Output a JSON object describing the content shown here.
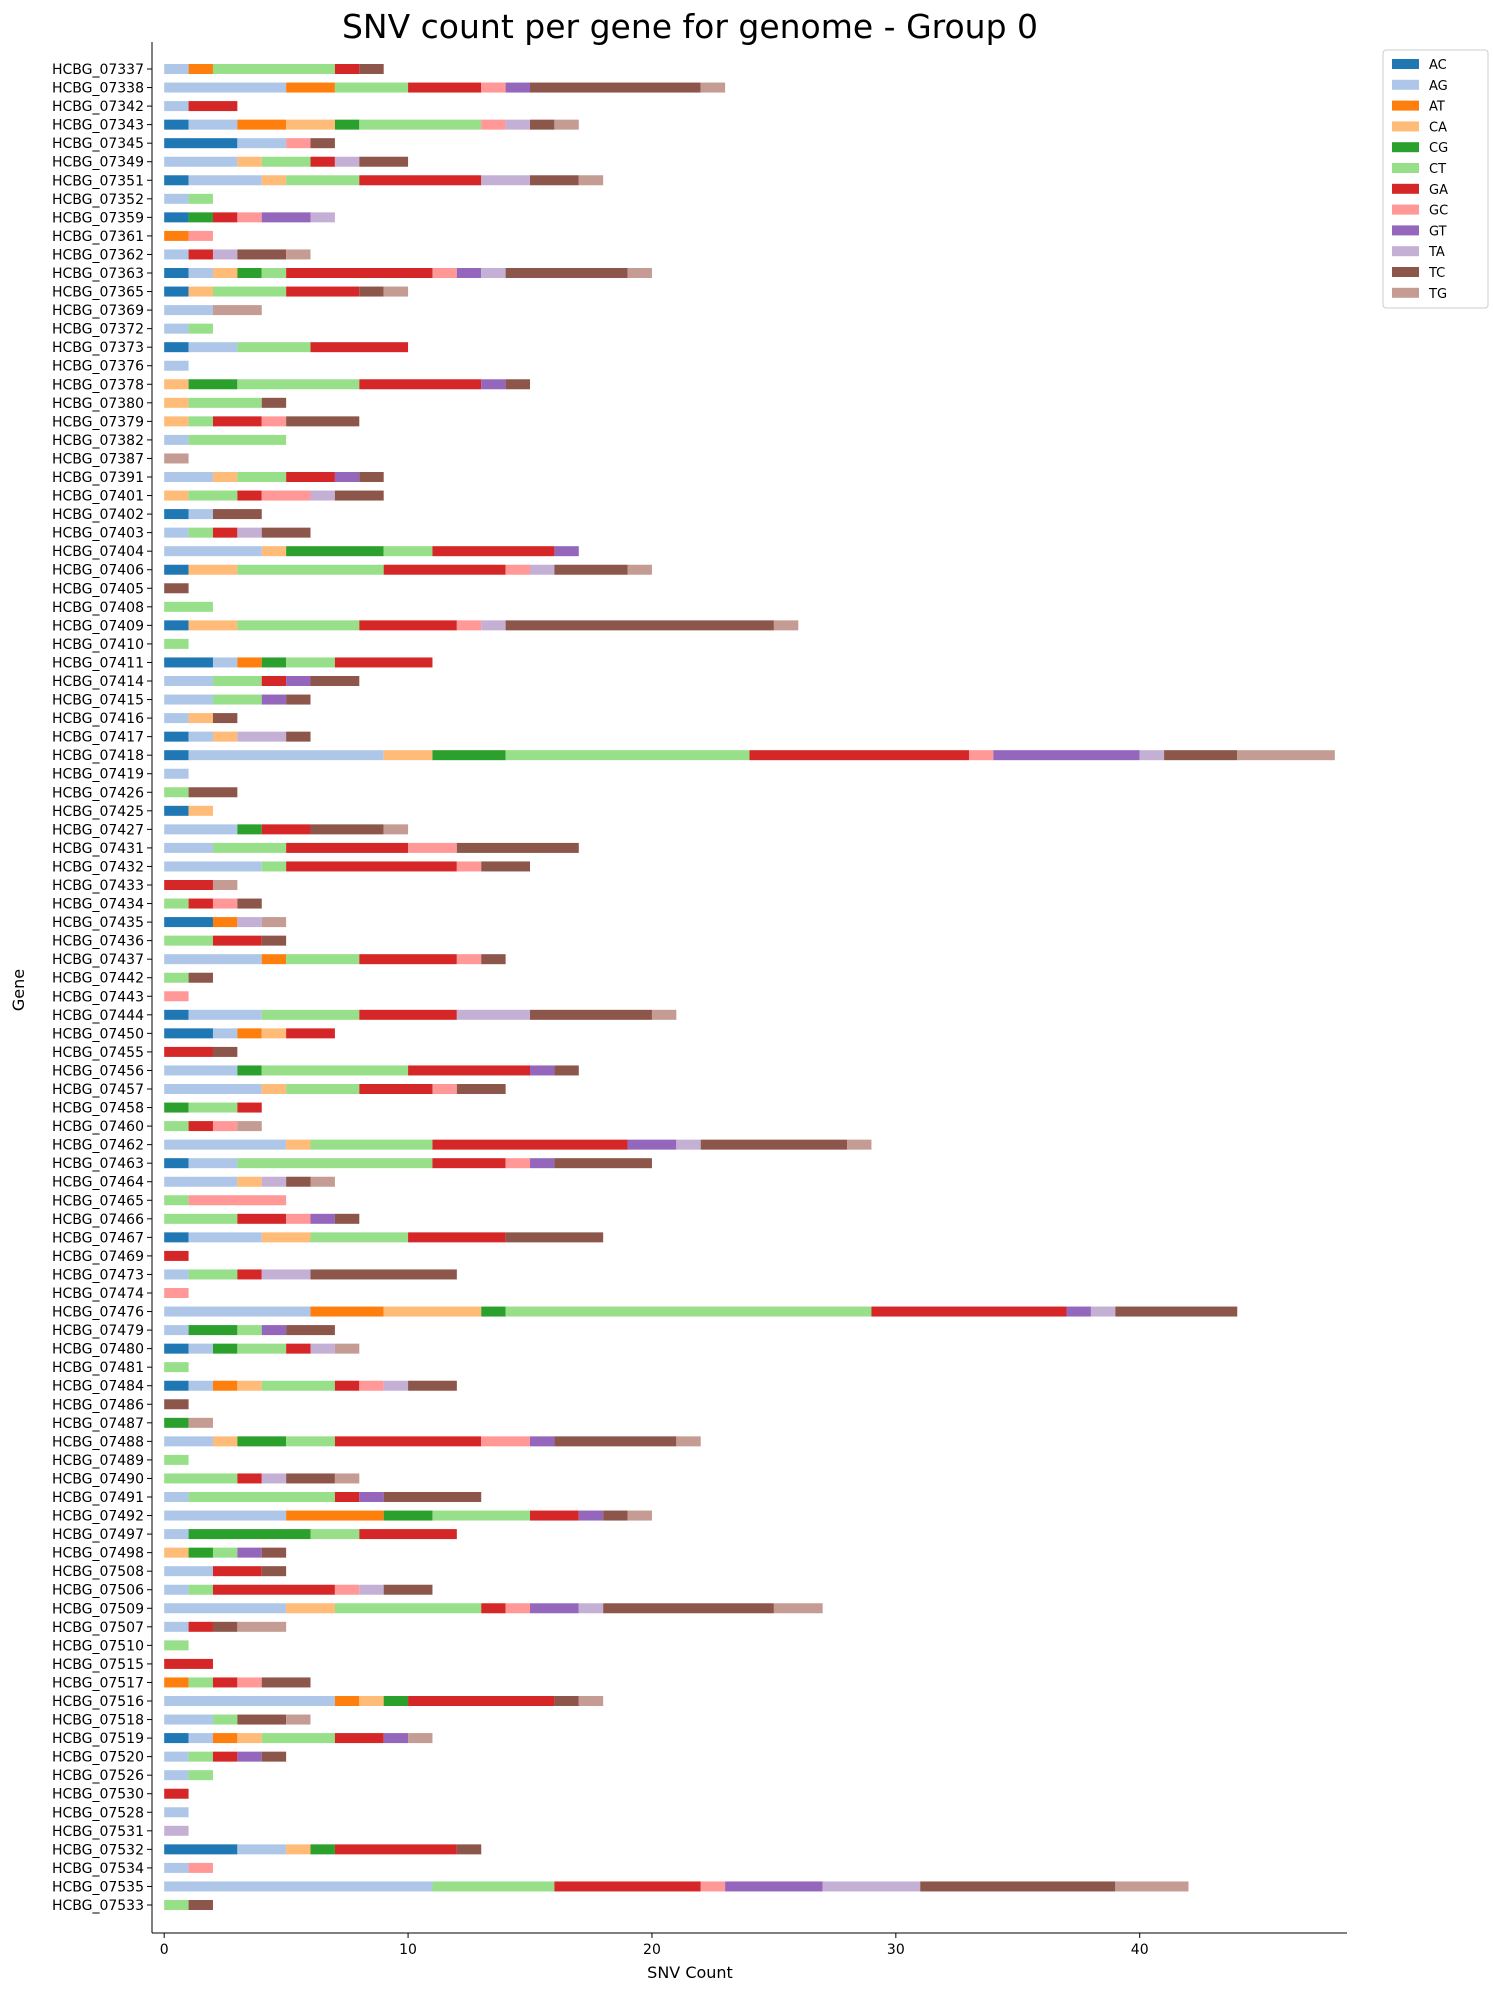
{
  "chart_data": {
    "type": "bar",
    "orientation": "horizontal",
    "stacked": true,
    "title": "SNV count per gene for genome - Group 0",
    "xlabel": "SNV Count",
    "ylabel": "Gene",
    "xlim": [
      -0.5,
      48.5
    ],
    "xticks": [
      0,
      10,
      20,
      30,
      40
    ],
    "grid": false,
    "legend": "top-right-outside",
    "legend_entries": [
      "AC",
      "AG",
      "AT",
      "CA",
      "CG",
      "CT",
      "GA",
      "GC",
      "GT",
      "TA",
      "TC",
      "TG"
    ],
    "colors": {
      "AC": "#1f77b4",
      "AG": "#aec7e8",
      "AT": "#ff7f0e",
      "CA": "#ffbb78",
      "CG": "#2ca02c",
      "CT": "#98df8a",
      "GA": "#d62728",
      "GC": "#ff9896",
      "GT": "#9467bd",
      "TA": "#c5b0d5",
      "TC": "#8c564b",
      "TG": "#c49c94"
    },
    "categories": [
      "HCBG_07337",
      "HCBG_07338",
      "HCBG_07342",
      "HCBG_07343",
      "HCBG_07345",
      "HCBG_07349",
      "HCBG_07351",
      "HCBG_07352",
      "HCBG_07359",
      "HCBG_07361",
      "HCBG_07362",
      "HCBG_07363",
      "HCBG_07365",
      "HCBG_07369",
      "HCBG_07372",
      "HCBG_07373",
      "HCBG_07376",
      "HCBG_07378",
      "HCBG_07380",
      "HCBG_07379",
      "HCBG_07382",
      "HCBG_07387",
      "HCBG_07391",
      "HCBG_07401",
      "HCBG_07402",
      "HCBG_07403",
      "HCBG_07404",
      "HCBG_07406",
      "HCBG_07405",
      "HCBG_07408",
      "HCBG_07409",
      "HCBG_07410",
      "HCBG_07411",
      "HCBG_07414",
      "HCBG_07415",
      "HCBG_07416",
      "HCBG_07417",
      "HCBG_07418",
      "HCBG_07419",
      "HCBG_07426",
      "HCBG_07425",
      "HCBG_07427",
      "HCBG_07431",
      "HCBG_07432",
      "HCBG_07433",
      "HCBG_07434",
      "HCBG_07435",
      "HCBG_07436",
      "HCBG_07437",
      "HCBG_07442",
      "HCBG_07443",
      "HCBG_07444",
      "HCBG_07450",
      "HCBG_07455",
      "HCBG_07456",
      "HCBG_07457",
      "HCBG_07458",
      "HCBG_07460",
      "HCBG_07462",
      "HCBG_07463",
      "HCBG_07464",
      "HCBG_07465",
      "HCBG_07466",
      "HCBG_07467",
      "HCBG_07469",
      "HCBG_07473",
      "HCBG_07474",
      "HCBG_07476",
      "HCBG_07479",
      "HCBG_07480",
      "HCBG_07481",
      "HCBG_07484",
      "HCBG_07486",
      "HCBG_07487",
      "HCBG_07488",
      "HCBG_07489",
      "HCBG_07490",
      "HCBG_07491",
      "HCBG_07492",
      "HCBG_07497",
      "HCBG_07498",
      "HCBG_07508",
      "HCBG_07506",
      "HCBG_07509",
      "HCBG_07507",
      "HCBG_07510",
      "HCBG_07515",
      "HCBG_07517",
      "HCBG_07516",
      "HCBG_07518",
      "HCBG_07519",
      "HCBG_07520",
      "HCBG_07526",
      "HCBG_07530",
      "HCBG_07528",
      "HCBG_07531",
      "HCBG_07532",
      "HCBG_07534",
      "HCBG_07535",
      "HCBG_07533"
    ],
    "series": [
      {
        "name": "AC",
        "values": [
          0,
          0,
          0,
          1,
          3,
          0,
          1,
          0,
          1,
          0,
          0,
          1,
          1,
          0,
          0,
          1,
          0,
          0,
          0,
          0,
          0,
          0,
          0,
          0,
          1,
          0,
          0,
          1,
          0,
          0,
          1,
          0,
          2,
          0,
          0,
          0,
          1,
          1,
          0,
          0,
          1,
          0,
          0,
          0,
          0,
          0,
          2,
          0,
          0,
          0,
          0,
          1,
          2,
          0,
          0,
          0,
          0,
          0,
          0,
          1,
          0,
          0,
          0,
          1,
          0,
          0,
          0,
          0,
          0,
          1,
          0,
          1,
          0,
          0,
          0,
          0,
          0,
          0,
          0,
          0,
          0,
          0,
          0,
          0,
          0,
          0,
          0,
          0,
          0,
          0,
          1,
          0,
          0,
          0,
          0,
          0,
          3,
          0,
          0,
          0
        ]
      },
      {
        "name": "AG",
        "values": [
          1,
          5,
          1,
          2,
          2,
          3,
          3,
          1,
          0,
          0,
          1,
          1,
          0,
          2,
          1,
          2,
          1,
          0,
          0,
          0,
          1,
          0,
          2,
          0,
          1,
          1,
          4,
          0,
          0,
          0,
          0,
          0,
          1,
          2,
          2,
          1,
          1,
          8,
          1,
          0,
          0,
          3,
          2,
          4,
          0,
          0,
          0,
          0,
          4,
          0,
          0,
          3,
          1,
          0,
          3,
          4,
          0,
          0,
          5,
          2,
          3,
          0,
          0,
          3,
          0,
          1,
          0,
          6,
          1,
          1,
          0,
          1,
          0,
          0,
          2,
          0,
          0,
          1,
          5,
          1,
          0,
          2,
          1,
          5,
          1,
          0,
          0,
          0,
          7,
          2,
          1,
          1,
          1,
          0,
          1,
          0,
          2,
          1,
          11,
          0
        ]
      },
      {
        "name": "AT",
        "values": [
          1,
          2,
          0,
          2,
          0,
          0,
          0,
          0,
          0,
          1,
          0,
          0,
          0,
          0,
          0,
          0,
          0,
          0,
          0,
          0,
          0,
          0,
          0,
          0,
          0,
          0,
          0,
          0,
          0,
          0,
          0,
          0,
          1,
          0,
          0,
          0,
          0,
          0,
          0,
          0,
          0,
          0,
          0,
          0,
          0,
          0,
          1,
          0,
          1,
          0,
          0,
          0,
          1,
          0,
          0,
          0,
          0,
          0,
          0,
          0,
          0,
          0,
          0,
          0,
          0,
          0,
          0,
          3,
          0,
          0,
          0,
          1,
          0,
          0,
          0,
          0,
          0,
          0,
          4,
          0,
          0,
          0,
          0,
          0,
          0,
          0,
          0,
          1,
          1,
          0,
          1,
          0,
          0,
          0,
          0,
          0,
          0,
          0,
          0,
          0
        ]
      },
      {
        "name": "CA",
        "values": [
          0,
          0,
          0,
          2,
          0,
          1,
          1,
          0,
          0,
          0,
          0,
          1,
          1,
          0,
          0,
          0,
          0,
          1,
          1,
          1,
          0,
          0,
          1,
          1,
          0,
          0,
          1,
          2,
          0,
          0,
          2,
          0,
          0,
          0,
          0,
          1,
          1,
          2,
          0,
          0,
          1,
          0,
          0,
          0,
          0,
          0,
          0,
          0,
          0,
          0,
          0,
          0,
          1,
          0,
          0,
          1,
          0,
          0,
          1,
          0,
          1,
          0,
          0,
          2,
          0,
          0,
          0,
          4,
          0,
          0,
          0,
          1,
          0,
          0,
          1,
          0,
          0,
          0,
          0,
          0,
          1,
          0,
          0,
          2,
          0,
          0,
          0,
          0,
          1,
          0,
          1,
          0,
          0,
          0,
          0,
          0,
          1,
          0,
          0,
          0
        ]
      },
      {
        "name": "CG",
        "values": [
          0,
          0,
          0,
          1,
          0,
          0,
          0,
          0,
          1,
          0,
          0,
          1,
          0,
          0,
          0,
          0,
          0,
          2,
          0,
          0,
          0,
          0,
          0,
          0,
          0,
          0,
          4,
          0,
          0,
          0,
          0,
          0,
          1,
          0,
          0,
          0,
          0,
          3,
          0,
          0,
          0,
          1,
          0,
          0,
          0,
          0,
          0,
          0,
          0,
          0,
          0,
          0,
          0,
          0,
          1,
          0,
          1,
          0,
          0,
          0,
          0,
          0,
          0,
          0,
          0,
          0,
          0,
          1,
          2,
          1,
          0,
          0,
          0,
          1,
          2,
          0,
          0,
          0,
          2,
          5,
          1,
          0,
          0,
          0,
          0,
          0,
          0,
          0,
          1,
          0,
          0,
          0,
          0,
          0,
          0,
          0,
          1,
          0,
          0,
          0
        ]
      },
      {
        "name": "CT",
        "values": [
          5,
          3,
          0,
          5,
          0,
          2,
          3,
          1,
          0,
          0,
          0,
          1,
          3,
          0,
          1,
          3,
          0,
          5,
          3,
          1,
          4,
          0,
          2,
          2,
          0,
          1,
          2,
          6,
          0,
          2,
          5,
          1,
          2,
          2,
          2,
          0,
          0,
          10,
          0,
          1,
          0,
          0,
          3,
          1,
          0,
          1,
          0,
          2,
          3,
          1,
          0,
          4,
          0,
          0,
          6,
          3,
          2,
          1,
          5,
          8,
          0,
          1,
          3,
          4,
          0,
          2,
          0,
          15,
          1,
          2,
          1,
          3,
          0,
          0,
          2,
          1,
          3,
          6,
          4,
          2,
          1,
          0,
          1,
          6,
          0,
          1,
          0,
          1,
          0,
          1,
          3,
          1,
          1,
          0,
          0,
          0,
          0,
          0,
          5,
          1
        ]
      },
      {
        "name": "GA",
        "values": [
          1,
          3,
          2,
          0,
          0,
          1,
          5,
          0,
          1,
          0,
          1,
          6,
          3,
          0,
          0,
          4,
          0,
          5,
          0,
          2,
          0,
          0,
          2,
          1,
          0,
          1,
          5,
          5,
          0,
          0,
          4,
          0,
          4,
          1,
          0,
          0,
          0,
          9,
          0,
          0,
          0,
          2,
          5,
          7,
          2,
          1,
          0,
          2,
          4,
          0,
          0,
          4,
          2,
          2,
          5,
          3,
          1,
          1,
          8,
          3,
          0,
          0,
          2,
          4,
          1,
          1,
          0,
          8,
          0,
          1,
          0,
          1,
          0,
          0,
          6,
          0,
          1,
          1,
          2,
          4,
          0,
          2,
          5,
          1,
          1,
          0,
          2,
          1,
          6,
          0,
          2,
          1,
          0,
          1,
          0,
          0,
          5,
          0,
          6,
          0
        ]
      },
      {
        "name": "GC",
        "values": [
          0,
          1,
          0,
          1,
          1,
          0,
          0,
          0,
          1,
          1,
          0,
          1,
          0,
          0,
          0,
          0,
          0,
          0,
          0,
          1,
          0,
          0,
          0,
          2,
          0,
          0,
          0,
          1,
          0,
          0,
          1,
          0,
          0,
          0,
          0,
          0,
          0,
          1,
          0,
          0,
          0,
          0,
          2,
          1,
          0,
          1,
          0,
          0,
          1,
          0,
          1,
          0,
          0,
          0,
          0,
          1,
          0,
          1,
          0,
          1,
          0,
          4,
          1,
          0,
          0,
          0,
          1,
          0,
          0,
          0,
          0,
          1,
          0,
          0,
          2,
          0,
          0,
          0,
          0,
          0,
          0,
          0,
          1,
          1,
          0,
          0,
          0,
          1,
          0,
          0,
          0,
          0,
          0,
          0,
          0,
          0,
          0,
          1,
          1,
          0
        ]
      },
      {
        "name": "GT",
        "values": [
          0,
          1,
          0,
          0,
          0,
          0,
          0,
          0,
          2,
          0,
          0,
          1,
          0,
          0,
          0,
          0,
          0,
          1,
          0,
          0,
          0,
          0,
          1,
          0,
          0,
          0,
          1,
          0,
          0,
          0,
          0,
          0,
          0,
          1,
          1,
          0,
          0,
          6,
          0,
          0,
          0,
          0,
          0,
          0,
          0,
          0,
          0,
          0,
          0,
          0,
          0,
          0,
          0,
          0,
          1,
          0,
          0,
          0,
          2,
          1,
          0,
          0,
          1,
          0,
          0,
          0,
          0,
          1,
          1,
          0,
          0,
          0,
          0,
          0,
          1,
          0,
          0,
          1,
          1,
          0,
          1,
          0,
          0,
          2,
          0,
          0,
          0,
          0,
          0,
          0,
          1,
          1,
          0,
          0,
          0,
          0,
          0,
          0,
          4,
          0
        ]
      },
      {
        "name": "TA",
        "values": [
          0,
          0,
          0,
          1,
          0,
          1,
          2,
          0,
          1,
          0,
          1,
          1,
          0,
          0,
          0,
          0,
          0,
          0,
          0,
          0,
          0,
          0,
          0,
          1,
          0,
          1,
          0,
          1,
          0,
          0,
          1,
          0,
          0,
          0,
          0,
          0,
          2,
          1,
          0,
          0,
          0,
          0,
          0,
          0,
          0,
          0,
          1,
          0,
          0,
          0,
          0,
          3,
          0,
          0,
          0,
          0,
          0,
          0,
          1,
          0,
          1,
          0,
          0,
          0,
          0,
          2,
          0,
          1,
          0,
          1,
          0,
          1,
          0,
          0,
          0,
          0,
          1,
          0,
          0,
          0,
          0,
          0,
          1,
          1,
          0,
          0,
          0,
          0,
          0,
          0,
          0,
          0,
          0,
          0,
          0,
          1,
          0,
          0,
          4,
          0
        ]
      },
      {
        "name": "TC",
        "values": [
          1,
          7,
          0,
          1,
          1,
          2,
          2,
          0,
          0,
          0,
          2,
          5,
          1,
          0,
          0,
          0,
          0,
          1,
          1,
          3,
          0,
          0,
          1,
          2,
          2,
          2,
          0,
          3,
          1,
          0,
          11,
          0,
          0,
          2,
          1,
          1,
          1,
          3,
          0,
          2,
          0,
          3,
          5,
          2,
          0,
          1,
          0,
          1,
          1,
          1,
          0,
          5,
          0,
          1,
          1,
          2,
          0,
          0,
          6,
          4,
          1,
          0,
          1,
          4,
          0,
          6,
          0,
          5,
          2,
          0,
          0,
          2,
          1,
          0,
          5,
          0,
          2,
          4,
          1,
          0,
          1,
          1,
          2,
          7,
          1,
          0,
          0,
          2,
          1,
          2,
          0,
          1,
          0,
          0,
          0,
          0,
          1,
          0,
          8,
          1
        ]
      },
      {
        "name": "TG",
        "values": [
          0,
          1,
          0,
          1,
          0,
          0,
          1,
          0,
          0,
          0,
          1,
          1,
          1,
          2,
          0,
          0,
          0,
          0,
          0,
          0,
          0,
          1,
          0,
          0,
          0,
          0,
          0,
          1,
          0,
          0,
          1,
          0,
          0,
          0,
          0,
          0,
          0,
          4,
          0,
          0,
          0,
          1,
          0,
          0,
          1,
          0,
          1,
          0,
          0,
          0,
          0,
          1,
          0,
          0,
          0,
          0,
          0,
          1,
          1,
          0,
          1,
          0,
          0,
          0,
          0,
          0,
          0,
          0,
          0,
          1,
          0,
          0,
          0,
          1,
          1,
          0,
          1,
          0,
          1,
          0,
          0,
          0,
          0,
          2,
          2,
          0,
          0,
          0,
          1,
          1,
          1,
          0,
          0,
          0,
          0,
          0,
          0,
          0,
          3,
          0
        ]
      }
    ]
  }
}
